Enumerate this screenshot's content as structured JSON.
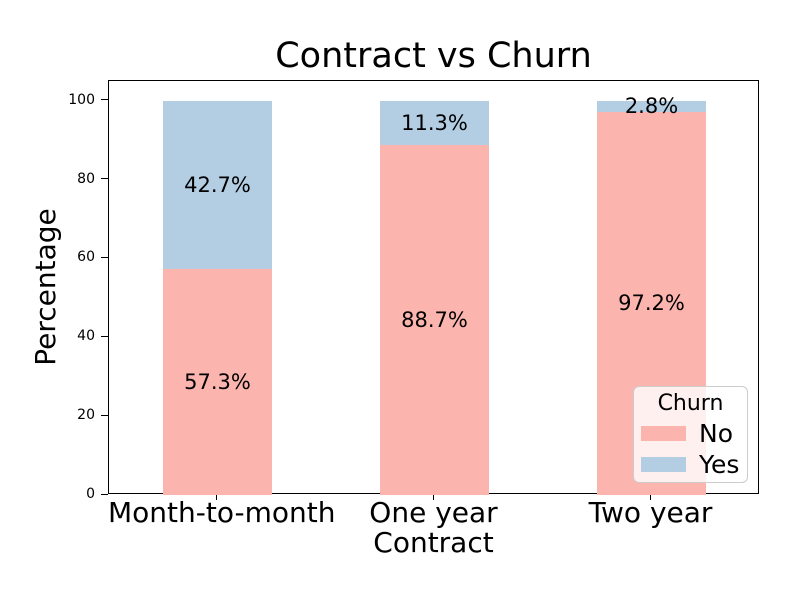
{
  "chart_data": {
    "type": "bar",
    "stacked": true,
    "title": "Contract vs Churn",
    "xlabel": "Contract",
    "ylabel": "Percentage",
    "categories": [
      "Month-to-month",
      "One year",
      "Two year"
    ],
    "series": [
      {
        "name": "No",
        "color": "#fbb4ae",
        "values": [
          57.3,
          88.7,
          97.2
        ],
        "labels": [
          "57.3%",
          "88.7%",
          "97.2%"
        ]
      },
      {
        "name": "Yes",
        "color": "#b3cde3",
        "values": [
          42.7,
          11.3,
          2.8
        ],
        "labels": [
          "42.7%",
          "11.3%",
          "2.8%"
        ]
      }
    ],
    "ylim": [
      0,
      105
    ],
    "yticks": [
      0,
      20,
      40,
      60,
      80,
      100
    ],
    "grid": false,
    "legend": {
      "title": "Churn",
      "position": "lower right",
      "entries": [
        "No",
        "Yes"
      ]
    }
  }
}
